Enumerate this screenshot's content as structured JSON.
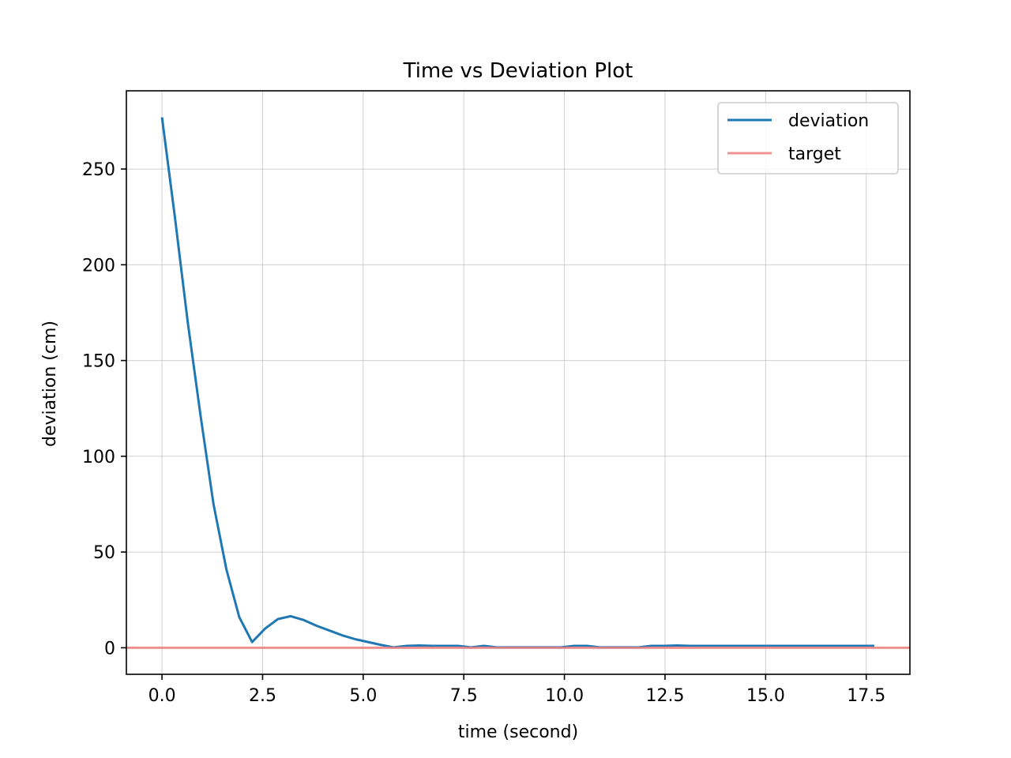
{
  "chart_data": {
    "type": "line",
    "title": "Time vs Deviation Plot",
    "xlabel": "time (second)",
    "ylabel": "deviation (cm)",
    "xlim": [
      -0.885,
      18.585
    ],
    "ylim": [
      -13.85,
      290.85
    ],
    "xticks": [
      0.0,
      2.5,
      5.0,
      7.5,
      10.0,
      12.5,
      15.0,
      17.5
    ],
    "xtick_labels": [
      "0.0",
      "2.5",
      "5.0",
      "7.5",
      "10.0",
      "12.5",
      "15.0",
      "17.5"
    ],
    "yticks": [
      0,
      50,
      100,
      150,
      200,
      250
    ],
    "ytick_labels": [
      "0",
      "50",
      "100",
      "150",
      "200",
      "250"
    ],
    "grid": true,
    "legend_position": "top-right",
    "series": [
      {
        "name": "deviation",
        "color": "#1f77b4",
        "x": [
          0.0,
          0.32,
          0.64,
          0.96,
          1.28,
          1.6,
          1.92,
          2.24,
          2.56,
          2.88,
          3.2,
          3.52,
          3.84,
          4.16,
          4.48,
          4.8,
          5.12,
          5.44,
          5.76,
          6.08,
          6.4,
          6.72,
          7.04,
          7.36,
          7.68,
          8.0,
          8.32,
          8.64,
          8.96,
          9.28,
          9.6,
          9.92,
          10.24,
          10.56,
          10.88,
          11.2,
          11.52,
          11.84,
          12.16,
          12.48,
          12.8,
          13.12,
          13.44,
          13.76,
          14.08,
          14.4,
          14.72,
          15.04,
          15.36,
          15.68,
          16.0,
          16.32,
          16.64,
          16.96,
          17.28,
          17.7
        ],
        "values": [
          277,
          225,
          170,
          121,
          75,
          41,
          16,
          3,
          10,
          15,
          16.5,
          14.5,
          11.5,
          9,
          6.5,
          4.5,
          3,
          1.5,
          0.2,
          1,
          1.2,
          1,
          1,
          1,
          0.2,
          1,
          0.2,
          0.2,
          0.2,
          0.2,
          0.2,
          0.2,
          1,
          1,
          0.2,
          0.2,
          0.2,
          0.2,
          1,
          1,
          1.2,
          1,
          1,
          1,
          1,
          1,
          1,
          1,
          1,
          1,
          1,
          1,
          1,
          1,
          1,
          1
        ]
      },
      {
        "name": "target",
        "color": "#f08080",
        "x": [
          -0.885,
          18.585
        ],
        "values": [
          0,
          0
        ]
      }
    ]
  }
}
